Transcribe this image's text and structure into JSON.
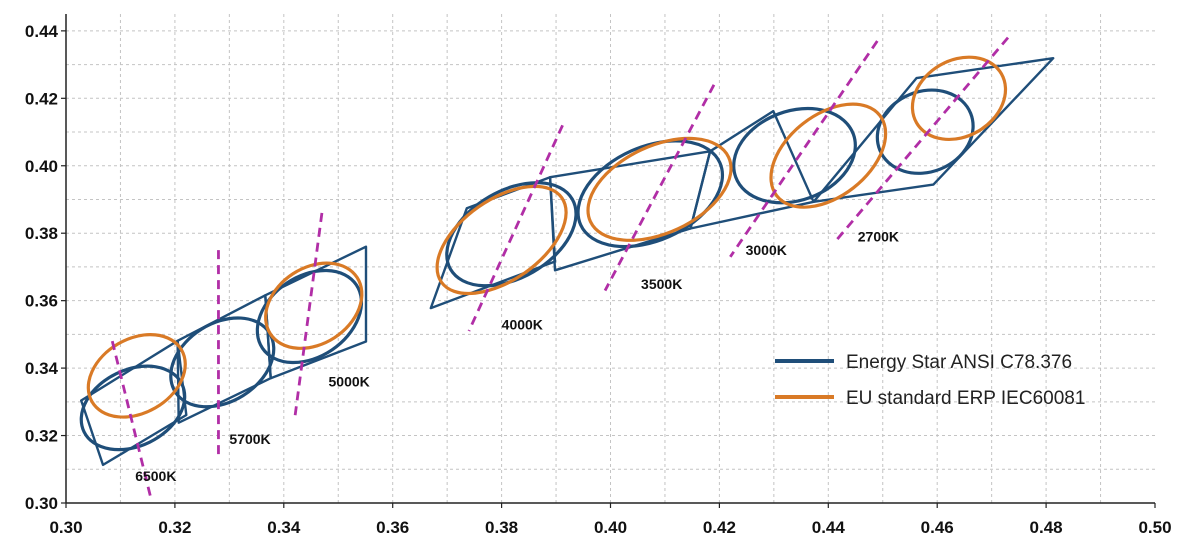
{
  "chart_data": {
    "type": "scatter",
    "title": "",
    "xlabel": "",
    "ylabel": "",
    "xlim": [
      0.3,
      0.5
    ],
    "ylim": [
      0.3,
      0.445
    ],
    "x_ticks": [
      "0.30",
      "0.32",
      "0.34",
      "0.36",
      "0.38",
      "0.40",
      "0.42",
      "0.44",
      "0.46",
      "0.48",
      "0.50"
    ],
    "y_ticks": [
      "0.30",
      "0.32",
      "0.34",
      "0.36",
      "0.38",
      "0.40",
      "0.42",
      "0.44"
    ],
    "x_tick_values": [
      0.3,
      0.32,
      0.34,
      0.36,
      0.38,
      0.4,
      0.42,
      0.44,
      0.46,
      0.48,
      0.5
    ],
    "y_tick_values": [
      0.3,
      0.32,
      0.34,
      0.36,
      0.38,
      0.4,
      0.42,
      0.44
    ],
    "grid": true,
    "legend_position": "bottom-right",
    "colors": {
      "energy_star": "#1f4e79",
      "eu": "#d97a26",
      "isotherm": "#b12ea6"
    },
    "legend": [
      {
        "label": "Energy Star ANSI C78.376",
        "color": "#1f4e79"
      },
      {
        "label": "EU standard ERP IEC60081",
        "color": "#d97a26"
      }
    ],
    "quadrangles": [
      {
        "cct": "6500K",
        "points": [
          [
            0.3068,
            0.3113
          ],
          [
            0.3221,
            0.3261
          ],
          [
            0.3205,
            0.3481
          ],
          [
            0.3028,
            0.3304
          ]
        ]
      },
      {
        "cct": "5700K",
        "points": [
          [
            0.3207,
            0.3238
          ],
          [
            0.3376,
            0.337
          ],
          [
            0.3366,
            0.3616
          ],
          [
            0.3205,
            0.3481
          ]
        ]
      },
      {
        "cct": "5000K",
        "points": [
          [
            0.3376,
            0.337
          ],
          [
            0.3551,
            0.3479
          ],
          [
            0.3551,
            0.376
          ],
          [
            0.3366,
            0.3616
          ]
        ]
      },
      {
        "cct": "4000K",
        "points": [
          [
            0.367,
            0.3578
          ],
          [
            0.3898,
            0.3716
          ],
          [
            0.3889,
            0.3966
          ],
          [
            0.3736,
            0.3874
          ]
        ]
      },
      {
        "cct": "3500K",
        "points": [
          [
            0.3898,
            0.369
          ],
          [
            0.4147,
            0.3814
          ],
          [
            0.4183,
            0.4043
          ],
          [
            0.3889,
            0.3966
          ]
        ]
      },
      {
        "cct": "3000K",
        "points": [
          [
            0.4147,
            0.3814
          ],
          [
            0.4373,
            0.3893
          ],
          [
            0.4299,
            0.4162
          ],
          [
            0.4183,
            0.4043
          ]
        ]
      },
      {
        "cct": "2700K",
        "points": [
          [
            0.4373,
            0.3893
          ],
          [
            0.4593,
            0.3944
          ],
          [
            0.4813,
            0.4319
          ],
          [
            0.4562,
            0.426
          ]
        ]
      }
    ],
    "ansi_ellipses": [
      {
        "cct": "6500K",
        "cx": 0.3123,
        "cy": 0.3282,
        "a": 0.01,
        "b": 0.007,
        "angle_deg": 26
      },
      {
        "cct": "5700K",
        "cx": 0.3287,
        "cy": 0.3417,
        "a": 0.0102,
        "b": 0.0072,
        "angle_deg": 32
      },
      {
        "cct": "5000K",
        "cx": 0.3447,
        "cy": 0.3553,
        "a": 0.0104,
        "b": 0.0074,
        "angle_deg": 34
      },
      {
        "cct": "4000K",
        "cx": 0.3818,
        "cy": 0.3797,
        "a": 0.0129,
        "b": 0.008,
        "angle_deg": 30
      },
      {
        "cct": "3500K",
        "cx": 0.4073,
        "cy": 0.3917,
        "a": 0.014,
        "b": 0.0086,
        "angle_deg": 24
      },
      {
        "cct": "3000K",
        "cx": 0.4338,
        "cy": 0.403,
        "a": 0.0115,
        "b": 0.0082,
        "angle_deg": 20
      },
      {
        "cct": "2700K",
        "cx": 0.4578,
        "cy": 0.4101,
        "a": 0.009,
        "b": 0.0074,
        "angle_deg": 22
      }
    ],
    "eu_ellipses": [
      {
        "cct": "6500K",
        "cx": 0.313,
        "cy": 0.3377,
        "a": 0.0095,
        "b": 0.0068,
        "angle_deg": 30
      },
      {
        "cct": "5000K",
        "cx": 0.3455,
        "cy": 0.3585,
        "a": 0.0095,
        "b": 0.007,
        "angle_deg": 33
      },
      {
        "cct": "4000K",
        "cx": 0.38,
        "cy": 0.378,
        "a": 0.0135,
        "b": 0.0074,
        "angle_deg": 35
      },
      {
        "cct": "3500K",
        "cx": 0.409,
        "cy": 0.393,
        "a": 0.014,
        "b": 0.008,
        "angle_deg": 25
      },
      {
        "cct": "3000K",
        "cx": 0.44,
        "cy": 0.403,
        "a": 0.012,
        "b": 0.0075,
        "angle_deg": 38
      },
      {
        "cct": "2700K",
        "cx": 0.464,
        "cy": 0.42,
        "a": 0.009,
        "b": 0.007,
        "angle_deg": 30
      }
    ],
    "isotemperature_lines": [
      {
        "cct": "6500K",
        "points": [
          [
            0.3085,
            0.348
          ],
          [
            0.3155,
            0.302
          ]
        ]
      },
      {
        "cct": "5700K",
        "points": [
          [
            0.328,
            0.375
          ],
          [
            0.328,
            0.314
          ]
        ]
      },
      {
        "cct": "5000K",
        "points": [
          [
            0.347,
            0.386
          ],
          [
            0.342,
            0.325
          ]
        ]
      },
      {
        "cct": "4000K",
        "points": [
          [
            0.3912,
            0.412
          ],
          [
            0.374,
            0.351
          ]
        ]
      },
      {
        "cct": "3500K",
        "points": [
          [
            0.419,
            0.424
          ],
          [
            0.399,
            0.363
          ]
        ]
      },
      {
        "cct": "3000K",
        "points": [
          [
            0.449,
            0.437
          ],
          [
            0.422,
            0.373
          ]
        ]
      },
      {
        "cct": "2700K",
        "points": [
          [
            0.473,
            0.438
          ],
          [
            0.441,
            0.377
          ]
        ]
      }
    ],
    "cct_labels": [
      {
        "text": "6500K",
        "x": 0.3165,
        "y": 0.3065
      },
      {
        "text": "5700K",
        "x": 0.3338,
        "y": 0.3175
      },
      {
        "text": "5000K",
        "x": 0.352,
        "y": 0.3345
      },
      {
        "text": "4000K",
        "x": 0.3838,
        "y": 0.3515
      },
      {
        "text": "3500K",
        "x": 0.4094,
        "y": 0.3635
      },
      {
        "text": "3000K",
        "x": 0.4286,
        "y": 0.3735
      },
      {
        "text": "2700K",
        "x": 0.4492,
        "y": 0.3775
      }
    ]
  }
}
